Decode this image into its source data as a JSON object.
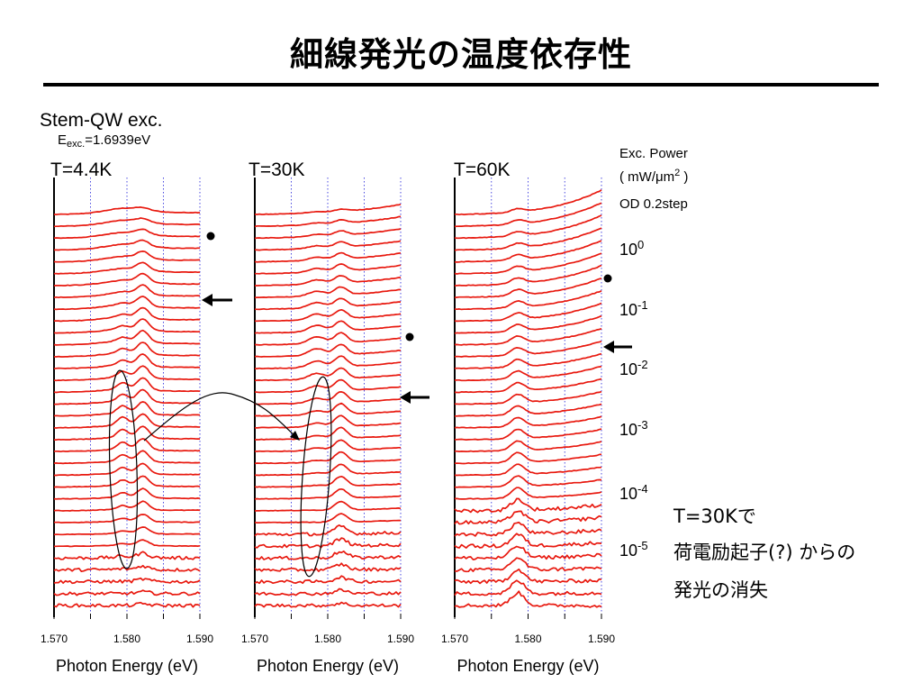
{
  "title": "細線発光の温度依存性",
  "setup": {
    "line1": "Stem-QW exc.",
    "line2_prefix": "E",
    "line2_sub": "exc.",
    "line2_value": "=1.6939eV"
  },
  "power_label": {
    "line1": "Exc. Power",
    "line2_open": "( mW/",
    "line2_mu": "μ",
    "line2_m": "m",
    "line2_exp": "2",
    "line2_close": " )",
    "line3": "OD 0.2step"
  },
  "power_ticks": [
    {
      "base": "10",
      "exp": "0"
    },
    {
      "base": "10",
      "exp": "-1"
    },
    {
      "base": "10",
      "exp": "-2"
    },
    {
      "base": "10",
      "exp": "-3"
    },
    {
      "base": "10",
      "exp": "-4"
    },
    {
      "base": "10",
      "exp": "-5"
    }
  ],
  "note": {
    "line1": "T=30Kで",
    "line2": "荷電励起子(?) からの",
    "line3": "発光の消失"
  },
  "colors": {
    "trace": "#e8190f",
    "grid": "#4a4ae0",
    "text": "#000000"
  },
  "chart_data": [
    {
      "type": "line",
      "title": "T=4.4K",
      "xlabel": "Photon Energy (eV)",
      "xlim": [
        1.57,
        1.59
      ],
      "xticks": [
        "1.570",
        "1.580",
        "1.590"
      ],
      "grid_x": [
        1.575,
        1.58,
        1.585,
        1.59
      ],
      "n_traces": 34,
      "peaks_eV": [
        1.5795,
        1.582
      ]
    },
    {
      "type": "line",
      "title": "T=30K",
      "xlabel": "Photon Energy (eV)",
      "xlim": [
        1.57,
        1.59
      ],
      "xticks": [
        "1.570",
        "1.580",
        "1.590"
      ],
      "grid_x": [
        1.575,
        1.58,
        1.585,
        1.59
      ],
      "n_traces": 34,
      "peaks_eV": [
        1.578,
        1.582
      ]
    },
    {
      "type": "line",
      "title": "T=60K",
      "xlabel": "Photon Energy (eV)",
      "xlim": [
        1.57,
        1.59
      ],
      "xticks": [
        "1.570",
        "1.580",
        "1.590"
      ],
      "grid_x": [
        1.575,
        1.58,
        1.585,
        1.59
      ],
      "n_traces": 34,
      "peaks_eV": [
        1.5785
      ]
    }
  ]
}
